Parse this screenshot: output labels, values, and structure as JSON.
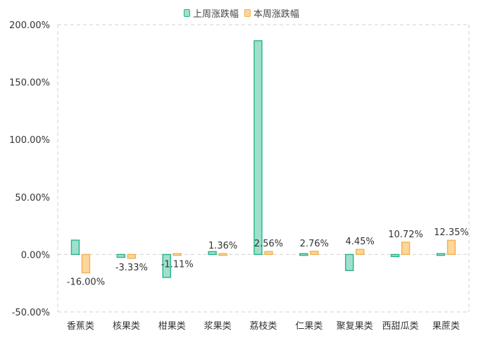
{
  "chart_data": {
    "type": "bar",
    "categories": [
      "香蕉类",
      "核果类",
      "柑果类",
      "浆果类",
      "荔枝类",
      "仁果类",
      "聚复果类",
      "西甜瓜类",
      "果蔗类"
    ],
    "series": [
      {
        "name": "上周涨跌幅",
        "values": [
          12.5,
          -2.5,
          -20.0,
          2.5,
          186.0,
          0.8,
          -14.0,
          -1.8,
          0.0
        ],
        "labels": [
          "",
          "",
          "",
          "",
          "",
          "",
          "",
          "",
          ""
        ],
        "fill": "#9fe0cc",
        "stroke": "#25b38b"
      },
      {
        "name": "本周涨跌幅",
        "values": [
          -16.0,
          -3.33,
          -1.11,
          1.36,
          2.56,
          2.76,
          4.45,
          10.72,
          12.35
        ],
        "labels": [
          "-16.00%",
          "-3.33%",
          "-1.11%",
          "1.36%",
          "2.56%",
          "2.76%",
          "4.45%",
          "10.72%",
          "12.35%"
        ],
        "fill": "#fcd69a",
        "stroke": "#f4b04f"
      }
    ],
    "yticks": [
      "200.00%",
      "150.00%",
      "100.00%",
      "50.00%",
      "0.00%",
      "-50.00%"
    ],
    "ylim": [
      -50,
      200
    ],
    "legend_position": "top-center",
    "grid": "dashed-frame"
  }
}
